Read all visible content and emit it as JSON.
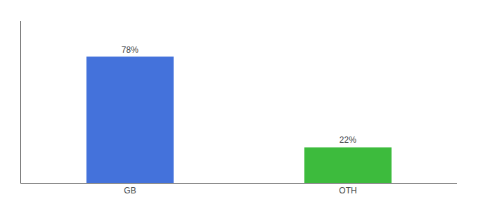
{
  "chart_data": {
    "type": "bar",
    "categories": [
      "GB",
      "OTH"
    ],
    "values": [
      78,
      22
    ],
    "value_labels": [
      "78%",
      "22%"
    ],
    "colors": [
      "#4472db",
      "#3dbb3d"
    ],
    "ylim": [
      0,
      100
    ],
    "data_labels": true,
    "tick_labels": "x",
    "grid": false
  }
}
